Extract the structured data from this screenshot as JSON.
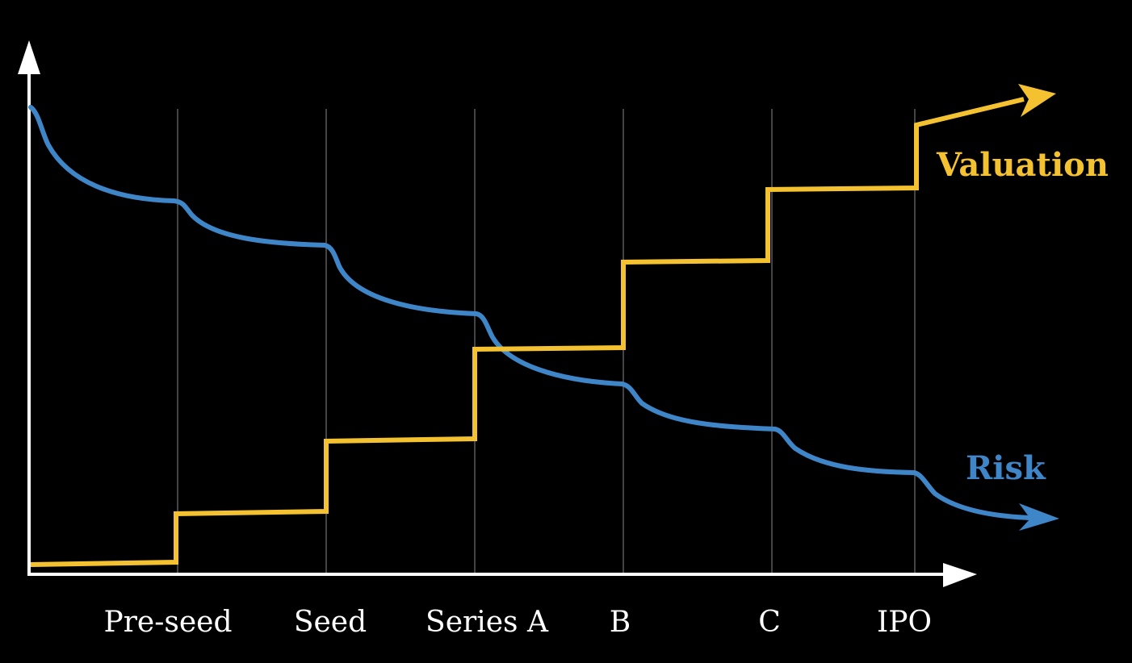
{
  "colors": {
    "background": "#000000",
    "axis": "#ffffff",
    "gridline": "#5a5a5a",
    "valuation": "#f4c230",
    "risk": "#3f86c8"
  },
  "diagram": {
    "stages": [
      "Pre-seed",
      "Seed",
      "Series A",
      "B",
      "C",
      "IPO"
    ],
    "series": [
      {
        "key": "valuation",
        "name": "Valuation",
        "trend": "increasing step function"
      },
      {
        "key": "risk",
        "name": "Risk",
        "trend": "decreasing curve with bumps at each stage"
      }
    ]
  }
}
